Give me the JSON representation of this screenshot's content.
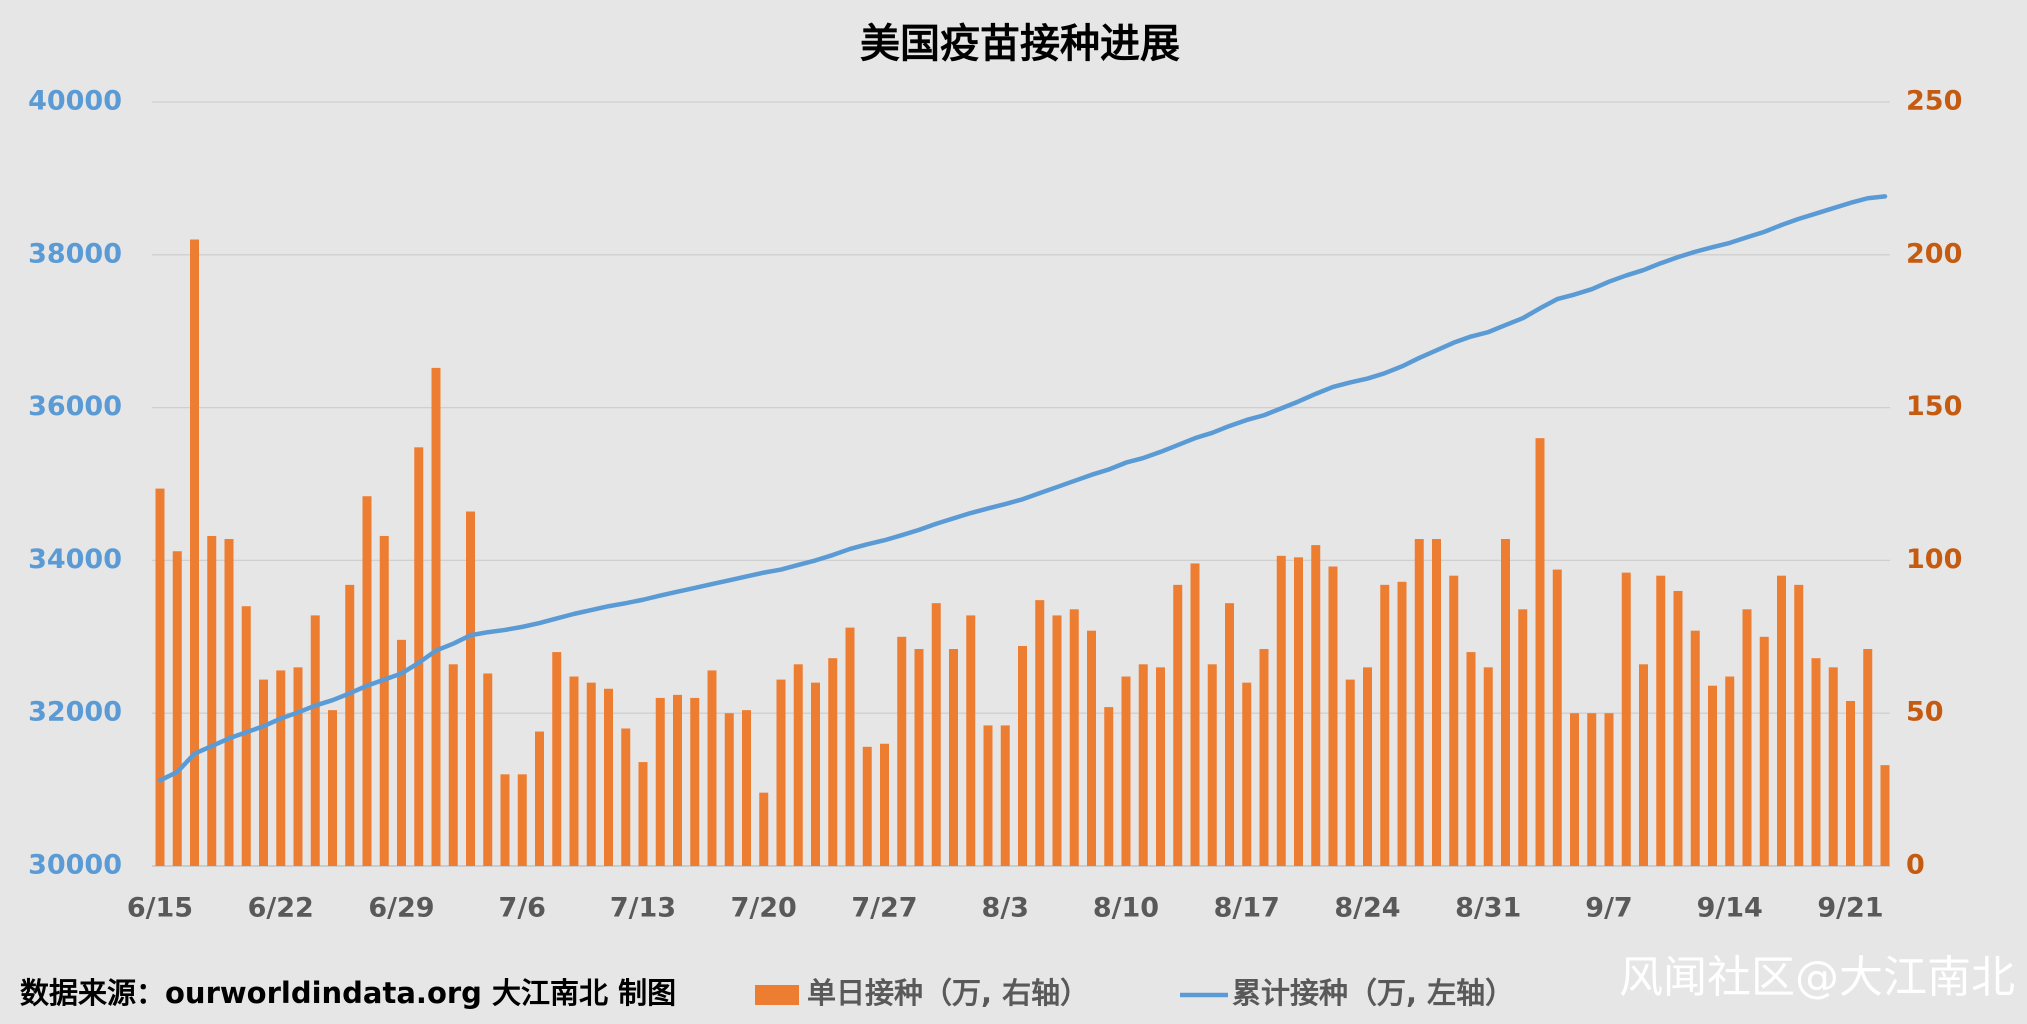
{
  "chart_data": {
    "type": "combo",
    "title": "美国疫苗接种进展",
    "categories": [
      "6/15",
      null,
      null,
      null,
      null,
      null,
      null,
      "6/22",
      null,
      null,
      null,
      null,
      null,
      null,
      "6/29",
      null,
      null,
      null,
      null,
      null,
      null,
      "7/6",
      null,
      null,
      null,
      null,
      null,
      null,
      "7/13",
      null,
      null,
      null,
      null,
      null,
      null,
      "7/20",
      null,
      null,
      null,
      null,
      null,
      null,
      "7/27",
      null,
      null,
      null,
      null,
      null,
      null,
      "8/3",
      null,
      null,
      null,
      null,
      null,
      null,
      "8/10",
      null,
      null,
      null,
      null,
      null,
      null,
      "8/17",
      null,
      null,
      null,
      null,
      null,
      null,
      "8/24",
      null,
      null,
      null,
      null,
      null,
      null,
      "8/31",
      null,
      null,
      null,
      null,
      null,
      null,
      "9/7",
      null,
      null,
      null,
      null,
      null,
      null,
      "9/14",
      null,
      null,
      null,
      null,
      null,
      null,
      "9/21",
      null,
      null
    ],
    "series": [
      {
        "name": "单日接种（万, 右轴）",
        "type": "bar",
        "axis": "y2",
        "color": "#ed7d31",
        "values": [
          123.5,
          103,
          205,
          108,
          107,
          85,
          61,
          64,
          65,
          82,
          51,
          92,
          121,
          108,
          74,
          137,
          163,
          66,
          116,
          63,
          30,
          30,
          44,
          70,
          62,
          60,
          58,
          45,
          34,
          55,
          56,
          55,
          64,
          50,
          51,
          24,
          61,
          66,
          60,
          68,
          78,
          39,
          40,
          75,
          71,
          86,
          71,
          82,
          46,
          46,
          72,
          87,
          82,
          84,
          77,
          52,
          62,
          66,
          65,
          92,
          99,
          66,
          86,
          60,
          71,
          101.5,
          101,
          105,
          98,
          61,
          65,
          92,
          93,
          107,
          107,
          95,
          70,
          65,
          107,
          84,
          140,
          97,
          50,
          50,
          50,
          96,
          66,
          95,
          90,
          77,
          59,
          62,
          84,
          75,
          95,
          92,
          68,
          65,
          54,
          71,
          33
        ]
      },
      {
        "name": "累计接种（万, 左轴）",
        "type": "line",
        "color": "#5b9bd5",
        "values": [
          31120,
          31230,
          31470,
          31570,
          31670,
          31750,
          31830,
          31930,
          32010,
          32100,
          32170,
          32260,
          32360,
          32440,
          32520,
          32660,
          32820,
          32910,
          33020,
          33060,
          33090,
          33130,
          33180,
          33240,
          33300,
          33350,
          33400,
          33440,
          33485,
          33540,
          33590,
          33640,
          33690,
          33740,
          33790,
          33840,
          33880,
          33940,
          34000,
          34070,
          34150,
          34210,
          34264,
          34330,
          34400,
          34480,
          34550,
          34620,
          34680,
          34738,
          34800,
          34880,
          34960,
          35040,
          35120,
          35190,
          35280,
          35340,
          35420,
          35510,
          35600,
          35670,
          35760,
          35838,
          35900,
          35990,
          36080,
          36180,
          36270,
          36330,
          36380,
          36450,
          36540,
          36650,
          36750,
          36850,
          36930,
          36988,
          37080,
          37170,
          37300,
          37420,
          37480,
          37550,
          37648,
          37730,
          37800,
          37890,
          37970,
          38040,
          38100,
          38156,
          38230,
          38300,
          38390,
          38470,
          38540,
          38610,
          38680,
          38740,
          38765
        ]
      }
    ],
    "ylim": [
      30000,
      40000
    ],
    "yticks": [
      30000,
      32000,
      34000,
      36000,
      38000,
      40000
    ],
    "y2lim": [
      0,
      250
    ],
    "y2ticks": [
      0,
      50,
      100,
      150,
      200,
      250
    ],
    "grid": true,
    "ytick_color": "#5b9bd5",
    "y2tick_color": "#c55a11",
    "source": "数据来源：ourworldindata.org 大江南北 制图",
    "watermark": "风闻社区@大江南北"
  }
}
